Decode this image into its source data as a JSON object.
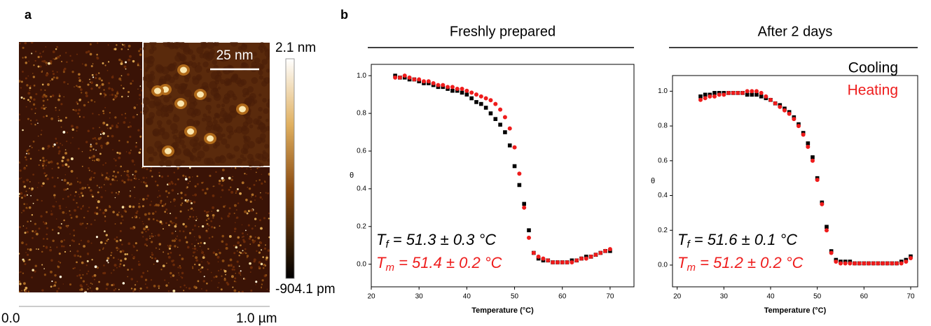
{
  "panel_a": {
    "label": "a",
    "scale_bar": "25 nm",
    "colorbar_max": "2.1 nm",
    "colorbar_min": "-904.1 pm",
    "axis_start": "0.0",
    "axis_end": "1.0 µm"
  },
  "panel_b": {
    "label": "b"
  },
  "chart_data": [
    {
      "type": "scatter",
      "title": "Freshly prepared",
      "x_label": "Temperature (°C)",
      "y_label": "θ",
      "xlim": [
        20,
        75
      ],
      "ylim": [
        -0.12,
        1.06
      ],
      "xticks": [
        20,
        30,
        40,
        50,
        60,
        70
      ],
      "yticks": [
        {
          "value": 0,
          "label": "0.0"
        },
        0.2,
        0.4,
        0.6,
        0.8,
        {
          "value": 1,
          "label": "1.0"
        }
      ],
      "x": [
        25,
        26,
        27,
        28,
        29,
        30,
        31,
        32,
        33,
        34,
        35,
        36,
        37,
        38,
        39,
        40,
        41,
        42,
        43,
        44,
        45,
        46,
        47,
        48,
        49,
        50,
        51,
        52,
        53,
        54,
        55,
        56,
        57,
        58,
        59,
        60,
        61,
        62,
        63,
        64,
        65,
        66,
        67,
        68,
        69,
        70
      ],
      "series": [
        {
          "color": "#000000",
          "marker": "square",
          "values": [
            1.0,
            0.99,
            0.99,
            0.98,
            0.98,
            0.97,
            0.96,
            0.96,
            0.95,
            0.94,
            0.94,
            0.93,
            0.92,
            0.92,
            0.91,
            0.9,
            0.88,
            0.86,
            0.85,
            0.83,
            0.8,
            0.77,
            0.74,
            0.7,
            0.63,
            0.52,
            0.42,
            0.32,
            0.18,
            0.06,
            0.03,
            0.02,
            0.02,
            0.01,
            0.01,
            0.01,
            0.01,
            0.02,
            0.02,
            0.03,
            0.04,
            0.04,
            0.05,
            0.06,
            0.07,
            0.07
          ]
        },
        {
          "color": "#ee1c1c",
          "marker": "circle",
          "values": [
            0.99,
            0.99,
            1.0,
            0.99,
            0.98,
            0.98,
            0.97,
            0.97,
            0.96,
            0.95,
            0.95,
            0.94,
            0.94,
            0.93,
            0.93,
            0.92,
            0.91,
            0.9,
            0.89,
            0.88,
            0.87,
            0.85,
            0.82,
            0.78,
            0.72,
            0.62,
            0.48,
            0.3,
            0.14,
            0.06,
            0.04,
            0.03,
            0.02,
            0.01,
            0.01,
            0.01,
            0.01,
            0.01,
            0.02,
            0.03,
            0.03,
            0.04,
            0.05,
            0.06,
            0.07,
            0.08
          ]
        }
      ],
      "annotations": [
        {
          "symbol": "T",
          "subscript": "f",
          "text": " = 51.3 ± 0.3 °C",
          "color": "#000000"
        },
        {
          "symbol": "T",
          "subscript": "m",
          "text": " = 51.4 ± 0.2 °C",
          "color": "#ee1c1c"
        }
      ]
    },
    {
      "type": "scatter",
      "title": "After 2 days",
      "x_label": "Temperature (°C)",
      "y_label": "θ",
      "xlim": [
        19,
        71.5
      ],
      "ylim": [
        -0.125,
        1.09
      ],
      "xticks": [
        20,
        30,
        40,
        50,
        60,
        70
      ],
      "yticks": [
        {
          "value": 0,
          "label": "0.0"
        },
        0.2,
        0.4,
        0.6,
        0.8,
        {
          "value": 1,
          "label": "1.0"
        }
      ],
      "legend": "upper right",
      "x": [
        25,
        26,
        27,
        28,
        29,
        30,
        31,
        32,
        33,
        34,
        35,
        36,
        37,
        38,
        39,
        40,
        41,
        42,
        43,
        44,
        45,
        46,
        47,
        48,
        49,
        50,
        51,
        52,
        53,
        54,
        55,
        56,
        57,
        58,
        59,
        60,
        61,
        62,
        63,
        64,
        65,
        66,
        67,
        68,
        69,
        70
      ],
      "series": [
        {
          "name": "Cooling",
          "color": "#000000",
          "marker": "square",
          "values": [
            0.97,
            0.98,
            0.98,
            0.99,
            0.99,
            0.99,
            0.99,
            0.99,
            0.99,
            0.99,
            0.98,
            0.98,
            0.98,
            0.97,
            0.96,
            0.95,
            0.93,
            0.92,
            0.9,
            0.88,
            0.85,
            0.81,
            0.76,
            0.7,
            0.62,
            0.5,
            0.36,
            0.22,
            0.08,
            0.03,
            0.02,
            0.02,
            0.02,
            0.01,
            0.01,
            0.01,
            0.01,
            0.01,
            0.01,
            0.01,
            0.01,
            0.01,
            0.01,
            0.02,
            0.03,
            0.05
          ]
        },
        {
          "name": "Heating",
          "color": "#ee1c1c",
          "marker": "circle",
          "values": [
            0.95,
            0.96,
            0.97,
            0.97,
            0.98,
            0.98,
            0.99,
            0.99,
            0.99,
            0.99,
            1.0,
            1.0,
            1.0,
            0.99,
            0.97,
            0.95,
            0.93,
            0.91,
            0.89,
            0.87,
            0.84,
            0.8,
            0.75,
            0.68,
            0.6,
            0.49,
            0.35,
            0.2,
            0.07,
            0.02,
            0.01,
            0.01,
            0.01,
            0.01,
            0.01,
            0.01,
            0.01,
            0.01,
            0.01,
            0.01,
            0.01,
            0.01,
            0.01,
            0.01,
            0.02,
            0.04
          ]
        }
      ],
      "annotations": [
        {
          "symbol": "T",
          "subscript": "f",
          "text": " = 51.6 ± 0.1 °C",
          "color": "#000000"
        },
        {
          "symbol": "T",
          "subscript": "m",
          "text": " = 51.2 ± 0.2 °C",
          "color": "#ee1c1c"
        }
      ]
    }
  ]
}
